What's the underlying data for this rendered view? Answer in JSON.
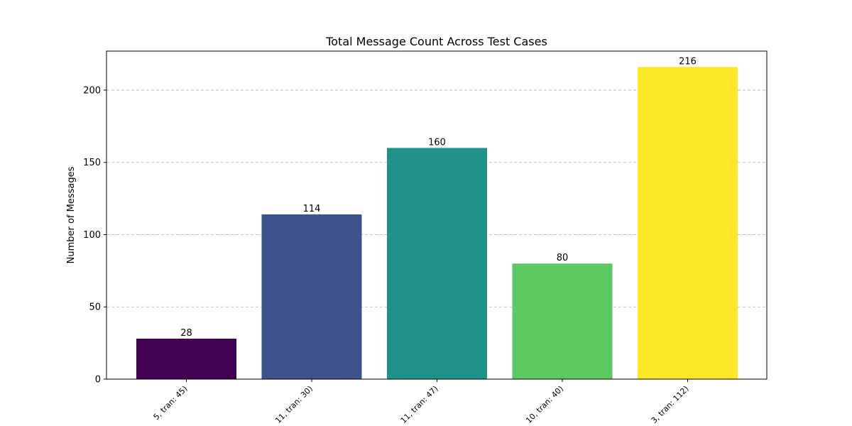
{
  "chart_data": {
    "type": "bar",
    "title": "Total Message Count Across Test Cases",
    "xlabel": "",
    "ylabel": "Number of Messages",
    "categories": [
      "5, tran: 45)",
      "11, tran: 30)",
      "11, tran: 47)",
      "10, tran: 40)",
      "3, tran: 112)"
    ],
    "values": [
      28,
      114,
      160,
      80,
      216
    ],
    "colors": [
      "#440154",
      "#3b528b",
      "#21918c",
      "#5ec962",
      "#fde725"
    ],
    "ylim": [
      0,
      227
    ],
    "yticks": [
      0,
      50,
      100,
      150,
      200
    ],
    "grid": "y-dashed",
    "legend": "none"
  }
}
